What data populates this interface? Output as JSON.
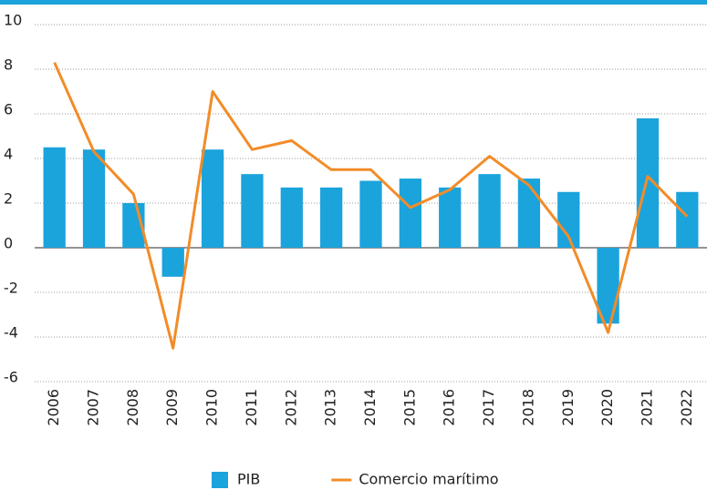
{
  "chart_data": {
    "type": "bar-line",
    "categories": [
      "2006",
      "2007",
      "2008",
      "2009",
      "2010",
      "2011",
      "2012",
      "2013",
      "2014",
      "2015",
      "2016",
      "2017",
      "2018",
      "2019",
      "2020",
      "2021",
      "2022"
    ],
    "series": [
      {
        "name": "PIB",
        "color": "#1ba3dc",
        "type": "bar",
        "values": [
          4.5,
          4.4,
          2.0,
          -1.3,
          4.4,
          3.3,
          2.7,
          2.7,
          3.0,
          3.1,
          2.7,
          3.3,
          3.1,
          2.5,
          -3.4,
          5.8,
          2.5
        ]
      },
      {
        "name": "Comercio marítimo",
        "color": "#f28c28",
        "type": "line",
        "values": [
          8.3,
          4.3,
          2.4,
          -4.5,
          7.0,
          4.4,
          4.8,
          3.5,
          3.5,
          1.8,
          2.6,
          4.1,
          2.8,
          0.5,
          -3.8,
          3.2,
          1.4
        ]
      }
    ],
    "ylim": [
      -6,
      10
    ],
    "yticks": [
      -6,
      -4,
      -2,
      0,
      2,
      4,
      6,
      8,
      10
    ],
    "grid": true,
    "legend": "bottom"
  }
}
